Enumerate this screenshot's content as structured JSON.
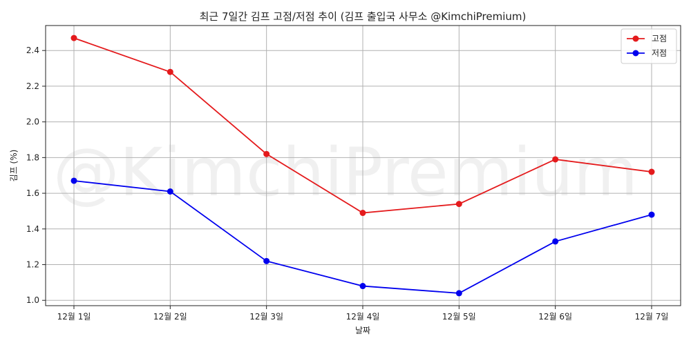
{
  "chart_data": {
    "type": "line",
    "title": "최근 7일간 김프 고점/저점 추이 (김프 출입국 사무소 @KimchiPremium)",
    "xlabel": "날짜",
    "ylabel": "김프 (%)",
    "categories": [
      "12월 1일",
      "12월 2일",
      "12월 3일",
      "12월 4일",
      "12월 5일",
      "12월 6일",
      "12월 7일"
    ],
    "series": [
      {
        "name": "고점",
        "color": "#e41a1c",
        "values": [
          2.47,
          2.28,
          1.82,
          1.49,
          1.54,
          1.79,
          1.72
        ]
      },
      {
        "name": "저점",
        "color": "#0000ee",
        "values": [
          1.67,
          1.61,
          1.22,
          1.08,
          1.04,
          1.33,
          1.48
        ]
      }
    ],
    "ylim": [
      0.97,
      2.54
    ],
    "yticks": [
      "1.0",
      "1.2",
      "1.4",
      "1.6",
      "1.8",
      "2.0",
      "2.2",
      "2.4"
    ],
    "grid": true,
    "legend_position": "top-right",
    "watermark": "@KimchiPremium"
  }
}
